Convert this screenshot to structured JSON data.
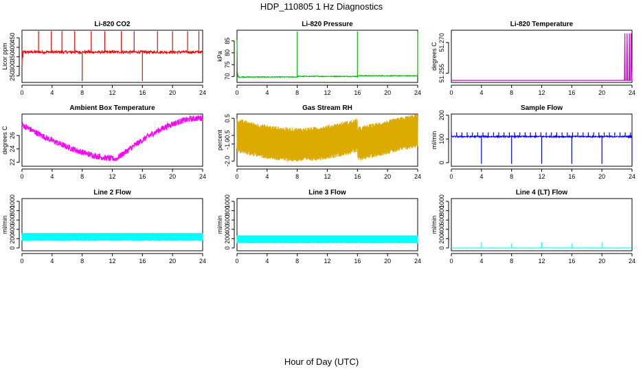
{
  "figure": {
    "title": "HDP_110805  1 Hz Diagnostics",
    "xlabel": "Hour of Day (UTC)"
  },
  "chart_data": [
    {
      "type": "line",
      "title": "Li-820 CO2",
      "ylabel": "Licor ppm",
      "color": "#ff0000",
      "xticks": [
        "0",
        "4",
        "8",
        "12",
        "16",
        "20",
        "24"
      ],
      "yticks": [
        "250",
        "300",
        "350",
        "400",
        "450"
      ],
      "xlim": [
        0,
        24
      ],
      "ylim": [
        215,
        490
      ]
    },
    {
      "type": "line",
      "title": "Li-820 Pressure",
      "ylabel": "kPa",
      "color": "#00bb00",
      "xticks": [
        "0",
        "4",
        "8",
        "12",
        "16",
        "20",
        "24"
      ],
      "yticks": [
        "70",
        "75",
        "80",
        "85"
      ],
      "xlim": [
        0,
        24
      ],
      "ylim": [
        67.5,
        89.5
      ]
    },
    {
      "type": "line",
      "title": "Li-820 Temperature",
      "ylabel": "degrees C",
      "color": "#cc00cc",
      "xticks": [
        "0",
        "4",
        "8",
        "12",
        "16",
        "20",
        "24"
      ],
      "yticks": [
        "51.255",
        "51.270"
      ],
      "xlim": [
        0,
        24
      ],
      "ylim": [
        51.2505,
        51.276
      ]
    },
    {
      "type": "line",
      "title": "Ambient Box Temperature",
      "ylabel": "degrees C",
      "color": "#ff00ff",
      "xticks": [
        "0",
        "4",
        "8",
        "12",
        "16",
        "20",
        "24"
      ],
      "yticks": [
        "22",
        "24",
        "26"
      ],
      "xlim": [
        0,
        24
      ],
      "ylim": [
        21.4,
        29.2
      ]
    },
    {
      "type": "line",
      "title": "Gas Stream RH",
      "ylabel": "percent",
      "color": "#ddaa00",
      "xticks": [
        "0",
        "4",
        "8",
        "12",
        "16",
        "20",
        "24"
      ],
      "yticks": [
        "-2.0",
        "-1.0",
        "-0.5",
        "0.5"
      ],
      "xlim": [
        0,
        24
      ],
      "ylim": [
        -2.3,
        0.75
      ]
    },
    {
      "type": "line",
      "title": "Sample Flow",
      "ylabel": "ml/min",
      "color": "#0000ff",
      "xticks": [
        "0",
        "4",
        "8",
        "12",
        "16",
        "20",
        "24"
      ],
      "yticks": [
        "0",
        "100",
        "200"
      ],
      "xlim": [
        0,
        24
      ],
      "ylim": [
        -15,
        205
      ]
    },
    {
      "type": "line",
      "title": "Line 2 Flow",
      "ylabel": "ml/min",
      "color": "#00ffff",
      "xticks": [
        "0",
        "4",
        "8",
        "12",
        "16",
        "20",
        "24"
      ],
      "yticks": [
        "0",
        "200",
        "400",
        "600",
        "800",
        "1000"
      ],
      "xlim": [
        0,
        24
      ],
      "ylim": [
        -60,
        1060
      ]
    },
    {
      "type": "line",
      "title": "Line 3 Flow",
      "ylabel": "ml/min",
      "color": "#00ffff",
      "xticks": [
        "0",
        "4",
        "8",
        "12",
        "16",
        "20",
        "24"
      ],
      "yticks": [
        "0",
        "200",
        "400",
        "600",
        "800",
        "1000"
      ],
      "xlim": [
        0,
        24
      ],
      "ylim": [
        -60,
        1060
      ]
    },
    {
      "type": "line",
      "title": "Line 4 (LT) Flow",
      "ylabel": "ml/min",
      "color": "#00ffff",
      "xticks": [
        "0",
        "4",
        "8",
        "12",
        "16",
        "20",
        "24"
      ],
      "yticks": [
        "0",
        "200",
        "400",
        "600",
        "800",
        "1000"
      ],
      "xlim": [
        0,
        24
      ],
      "ylim": [
        -60,
        1060
      ]
    }
  ]
}
